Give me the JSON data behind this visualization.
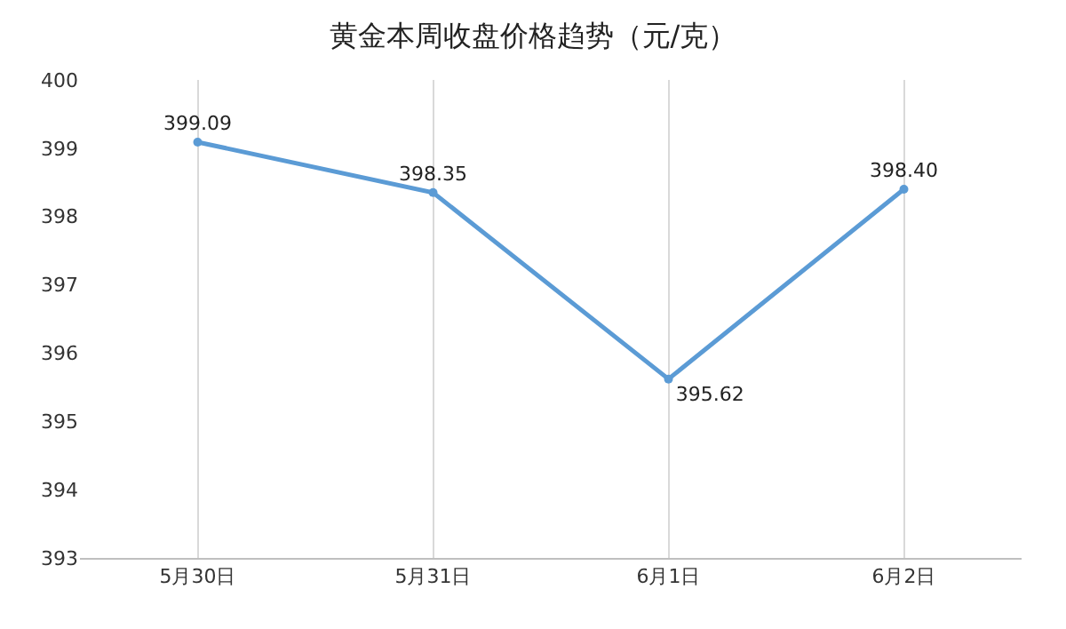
{
  "chart_data": {
    "type": "line",
    "title": "黄金本周收盘价格趋势（元/克）",
    "categories": [
      "5月30日",
      "5月31日",
      "6月1日",
      "6月2日"
    ],
    "values": [
      399.09,
      398.35,
      395.62,
      398.4
    ],
    "value_labels": [
      "399.09",
      "398.35",
      "395.62",
      "398.40"
    ],
    "color": "#5b9bd5",
    "ylim": [
      393,
      400
    ],
    "yticks": [
      393,
      394,
      395,
      396,
      397,
      398,
      399,
      400
    ],
    "grid": "x",
    "marker": "circle",
    "line_style": "solid"
  }
}
